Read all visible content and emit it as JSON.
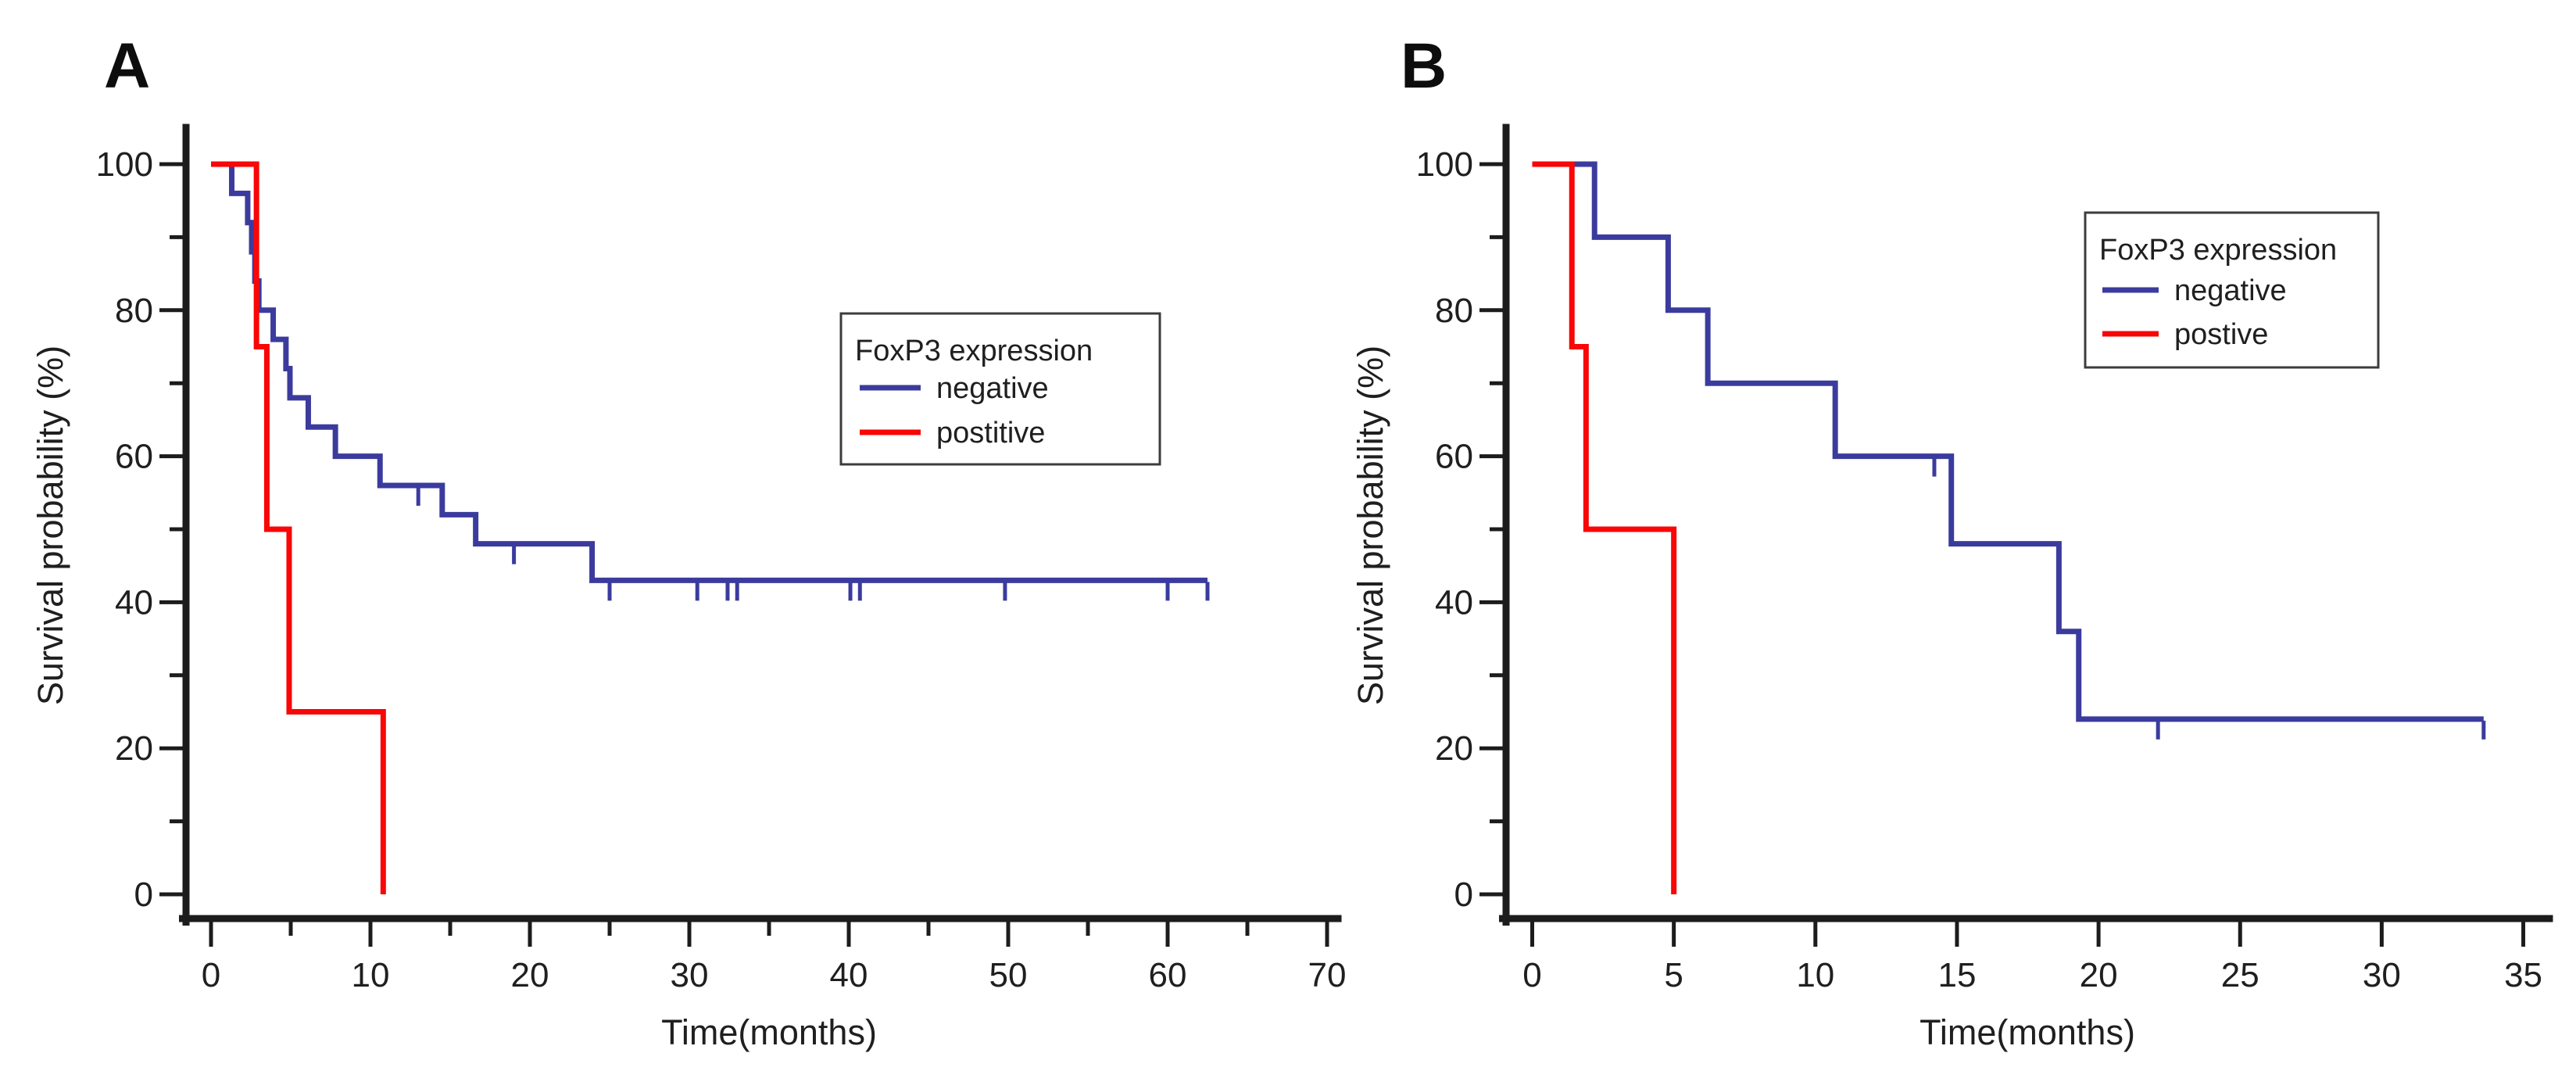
{
  "panels": [
    {
      "label": "A",
      "x_title": "Time(months)",
      "y_title": "Survival probability (%)",
      "legend": {
        "title": "FoxP3 expression",
        "items": [
          {
            "label": "negative"
          },
          {
            "label": "postitive"
          }
        ]
      }
    },
    {
      "label": "B",
      "x_title": "Time(months)",
      "y_title": "Survival probability (%)",
      "legend": {
        "title": "FoxP3 expression",
        "items": [
          {
            "label": "negative"
          },
          {
            "label": "postive"
          }
        ]
      }
    }
  ],
  "chart_data": [
    {
      "type": "line",
      "subtype": "kaplan-meier-step",
      "panel": "A",
      "xlabel": "Time(months)",
      "ylabel": "Survival probability (%)",
      "xlim": [
        0,
        70
      ],
      "ylim": [
        0,
        100
      ],
      "x_ticks_major": [
        0,
        10,
        20,
        30,
        40,
        50,
        60,
        70
      ],
      "x_ticks_minor": [
        5,
        15,
        25,
        35,
        45,
        55,
        65
      ],
      "y_ticks_major": [
        0,
        20,
        40,
        60,
        80,
        100
      ],
      "y_ticks_minor": [
        10,
        30,
        50,
        70,
        90
      ],
      "grid": false,
      "legend_position": "right-center",
      "series": [
        {
          "name": "negative",
          "color": "#3b3b9e",
          "steps": [
            [
              0,
              100
            ],
            [
              1.3,
              96
            ],
            [
              2.3,
              92
            ],
            [
              2.55,
              88
            ],
            [
              2.75,
              84
            ],
            [
              3.0,
              80
            ],
            [
              3.9,
              76
            ],
            [
              4.7,
              72
            ],
            [
              4.95,
              68
            ],
            [
              6.1,
              64
            ],
            [
              7.8,
              60
            ],
            [
              10.6,
              56
            ],
            [
              14.5,
              52
            ],
            [
              16.6,
              48
            ],
            [
              23.9,
              43
            ]
          ],
          "end_x": 62.5,
          "censors": [
            [
              13,
              56
            ],
            [
              19,
              48
            ],
            [
              25,
              43
            ],
            [
              30.5,
              43
            ],
            [
              32.4,
              43
            ],
            [
              33,
              43
            ],
            [
              40.1,
              43
            ],
            [
              40.7,
              43
            ],
            [
              49.8,
              43
            ],
            [
              60,
              43
            ],
            [
              62.5,
              43
            ]
          ]
        },
        {
          "name": "postitive",
          "color": "#f90606",
          "steps": [
            [
              0,
              100
            ],
            [
              2.85,
              75
            ],
            [
              3.5,
              50
            ],
            [
              4.9,
              25
            ],
            [
              10.8,
              0
            ]
          ],
          "end_x": 10.8,
          "censors": []
        }
      ]
    },
    {
      "type": "line",
      "subtype": "kaplan-meier-step",
      "panel": "B",
      "xlabel": "Time(months)",
      "ylabel": "Survival probability (%)",
      "xlim": [
        0,
        35
      ],
      "ylim": [
        0,
        100
      ],
      "x_ticks_major": [
        0,
        5,
        10,
        15,
        20,
        25,
        30,
        35
      ],
      "x_ticks_minor": [],
      "y_ticks_major": [
        0,
        20,
        40,
        60,
        80,
        100
      ],
      "y_ticks_minor": [
        10,
        30,
        50,
        70,
        90
      ],
      "grid": false,
      "legend_position": "right-top",
      "series": [
        {
          "name": "negative",
          "color": "#3b3b9e",
          "steps": [
            [
              0,
              100
            ],
            [
              2.2,
              90
            ],
            [
              4.8,
              80
            ],
            [
              6.2,
              70
            ],
            [
              10.7,
              60
            ],
            [
              14.8,
              48
            ],
            [
              18.6,
              36
            ],
            [
              19.3,
              24
            ]
          ],
          "end_x": 33.6,
          "censors": [
            [
              14.2,
              60
            ],
            [
              22.1,
              24
            ],
            [
              33.6,
              24
            ]
          ]
        },
        {
          "name": "postive",
          "color": "#f90606",
          "steps": [
            [
              0,
              100
            ],
            [
              1.4,
              75
            ],
            [
              1.9,
              50
            ],
            [
              5.0,
              0
            ]
          ],
          "end_x": 5.0,
          "censors": []
        }
      ]
    }
  ]
}
